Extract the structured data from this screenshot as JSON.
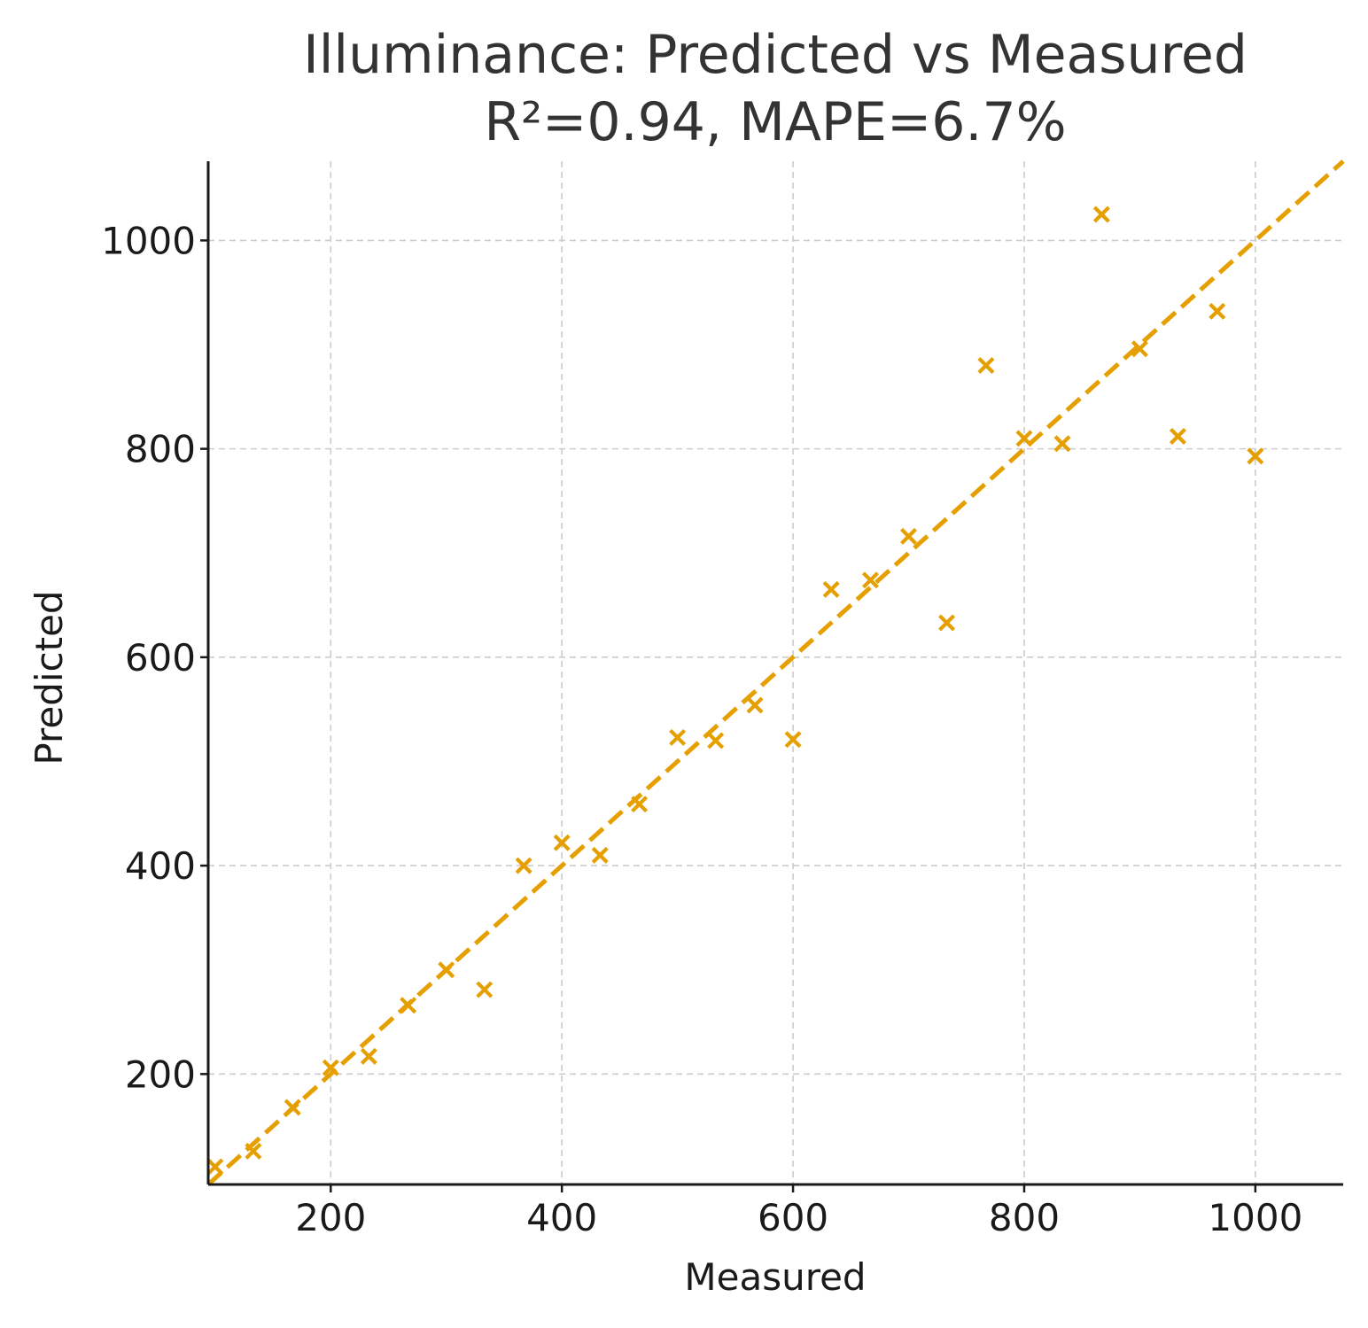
{
  "chart_data": {
    "type": "scatter",
    "title": "Illuminance: Predicted vs Measured",
    "subtitle": "R²=0.94, MAPE=6.7%",
    "xlabel": "Measured",
    "ylabel": "Predicted",
    "xlim": [
      94,
      1076
    ],
    "ylim": [
      94,
      1076
    ],
    "x_ticks": [
      200,
      400,
      600,
      800,
      1000
    ],
    "y_ticks": [
      200,
      400,
      600,
      800,
      1000
    ],
    "x_tick_labels": [
      "200",
      "400",
      "600",
      "800",
      "1000"
    ],
    "y_tick_labels": [
      "200",
      "400",
      "600",
      "800",
      "1000"
    ],
    "grid": true,
    "legend": "none",
    "marker": "x",
    "color": "#E69F00",
    "reference_line": {
      "style": "dashed",
      "from": [
        94,
        94
      ],
      "to": [
        1076,
        1076
      ]
    },
    "points": [
      {
        "x": 100,
        "y": 111
      },
      {
        "x": 133,
        "y": 126
      },
      {
        "x": 167,
        "y": 168
      },
      {
        "x": 200,
        "y": 206
      },
      {
        "x": 233,
        "y": 217
      },
      {
        "x": 267,
        "y": 266
      },
      {
        "x": 300,
        "y": 300
      },
      {
        "x": 333,
        "y": 281
      },
      {
        "x": 367,
        "y": 400
      },
      {
        "x": 400,
        "y": 422
      },
      {
        "x": 433,
        "y": 410
      },
      {
        "x": 467,
        "y": 459
      },
      {
        "x": 500,
        "y": 523
      },
      {
        "x": 533,
        "y": 520
      },
      {
        "x": 567,
        "y": 554
      },
      {
        "x": 600,
        "y": 521
      },
      {
        "x": 633,
        "y": 665
      },
      {
        "x": 667,
        "y": 674
      },
      {
        "x": 700,
        "y": 716
      },
      {
        "x": 733,
        "y": 633
      },
      {
        "x": 767,
        "y": 880
      },
      {
        "x": 800,
        "y": 810
      },
      {
        "x": 833,
        "y": 805
      },
      {
        "x": 867,
        "y": 1025
      },
      {
        "x": 900,
        "y": 896
      },
      {
        "x": 933,
        "y": 812
      },
      {
        "x": 967,
        "y": 932
      },
      {
        "x": 1000,
        "y": 793
      }
    ]
  }
}
